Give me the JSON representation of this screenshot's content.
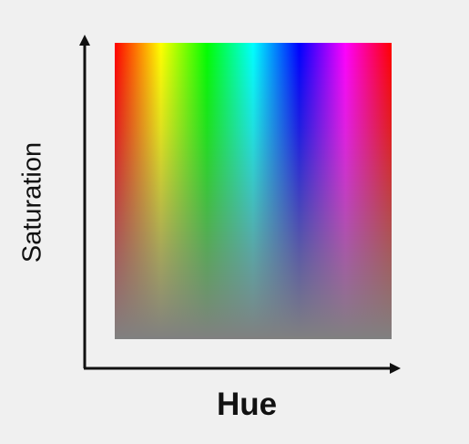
{
  "axes": {
    "x_label": "Hue",
    "y_label": "Saturation"
  },
  "gradient": {
    "hue_stops": [
      "#ff0000",
      "#ffff00",
      "#00ff00",
      "#00ffff",
      "#0000ff",
      "#ff00ff",
      "#ff0000"
    ],
    "desaturated_color": "#808080"
  },
  "colors": {
    "background": "#f0f0f0",
    "axis": "#111111"
  }
}
